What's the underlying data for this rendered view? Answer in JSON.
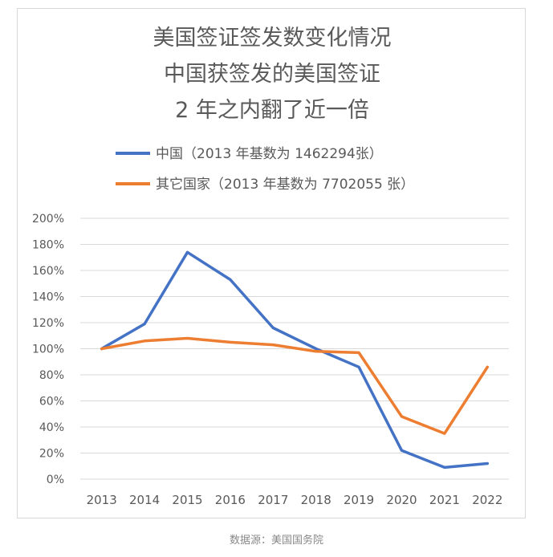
{
  "chart_data": {
    "type": "line",
    "title": [
      "美国签证签发数变化情况",
      "中国获签发的美国签证",
      "2 年之内翻了近一倍"
    ],
    "categories": [
      "2013",
      "2014",
      "2015",
      "2016",
      "2017",
      "2018",
      "2019",
      "2020",
      "2021",
      "2022"
    ],
    "y_ticks": [
      "0%",
      "20%",
      "40%",
      "60%",
      "80%",
      "100%",
      "120%",
      "140%",
      "160%",
      "180%",
      "200%"
    ],
    "ylim": [
      0,
      200
    ],
    "grid": true,
    "legend_position": "top",
    "series": [
      {
        "name": "中国（2013 年基数为 1462294张）",
        "color": "#4472C4",
        "values": [
          100,
          119,
          174,
          153,
          116,
          100,
          86,
          22,
          9,
          12
        ]
      },
      {
        "name": "其它国家（2013 年基数为 7702055 张）",
        "color": "#ED7D31",
        "values": [
          100,
          106,
          108,
          105,
          103,
          98,
          97,
          48,
          35,
          86
        ]
      }
    ]
  },
  "source": "数据源：美国国务院"
}
